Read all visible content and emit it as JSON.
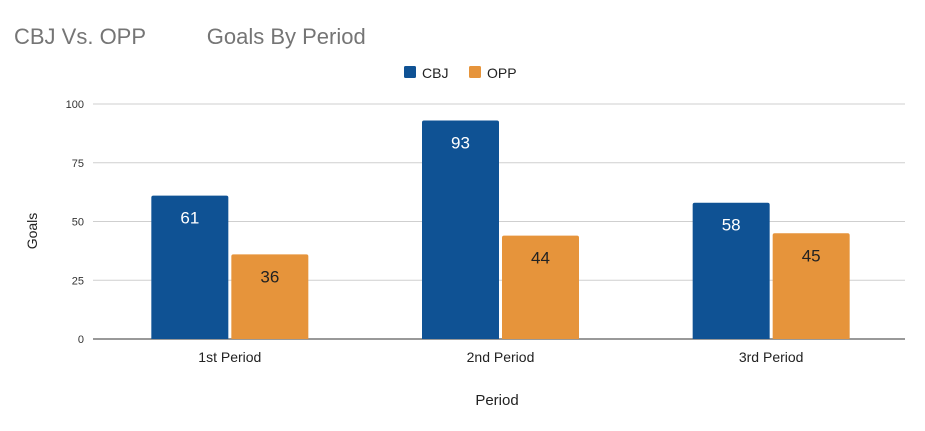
{
  "chart_data": {
    "type": "bar",
    "title": "CBJ Vs. OPP          Goals By Period",
    "xlabel": "Period",
    "ylabel": "Goals",
    "categories": [
      "1st Period",
      "2nd Period",
      "3rd Period"
    ],
    "series": [
      {
        "name": "CBJ",
        "values": [
          61,
          93,
          58
        ],
        "color": "#0f5294"
      },
      {
        "name": "OPP",
        "values": [
          36,
          44,
          45
        ],
        "color": "#e6943b"
      }
    ],
    "ylim": [
      0,
      100
    ],
    "yticks": [
      0,
      25,
      50,
      75,
      100
    ],
    "grid": true,
    "legend_position": "top-center",
    "data_labels": true
  }
}
